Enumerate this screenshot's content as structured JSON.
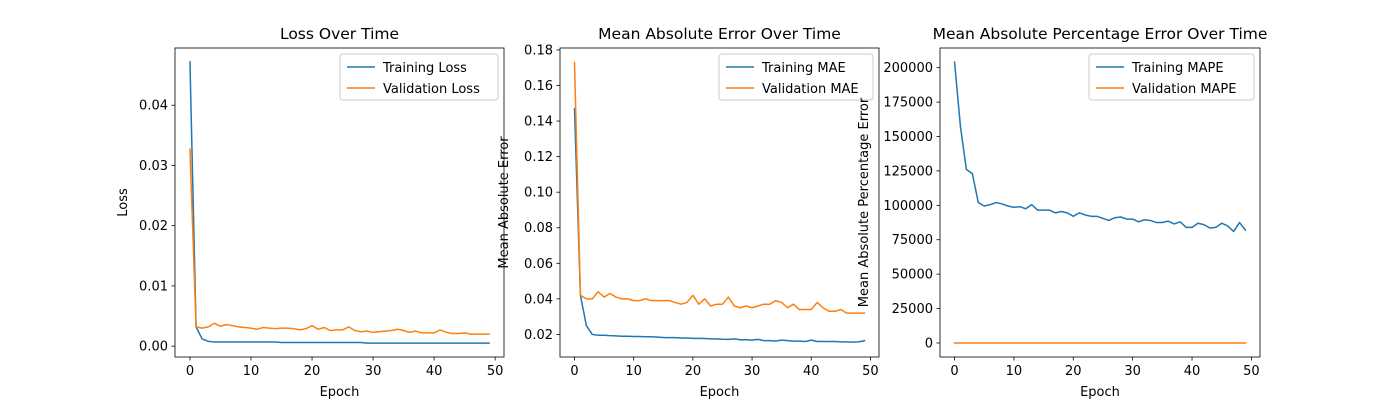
{
  "chart_data": [
    {
      "type": "line",
      "title": "Loss Over Time",
      "xlabel": "Epoch",
      "ylabel": "Loss",
      "xlim": [
        -2.45,
        51.45
      ],
      "ylim": [
        -0.0018,
        0.0495
      ],
      "xticks": [
        0,
        10,
        20,
        30,
        40,
        50
      ],
      "yticks": [
        0.0,
        0.01,
        0.02,
        0.03,
        0.04
      ],
      "ytick_labels": [
        "0.00",
        "0.01",
        "0.02",
        "0.03",
        "0.04"
      ],
      "legend": "upper right",
      "x": [
        0,
        1,
        2,
        3,
        4,
        5,
        6,
        7,
        8,
        9,
        10,
        11,
        12,
        13,
        14,
        15,
        16,
        17,
        18,
        19,
        20,
        21,
        22,
        23,
        24,
        25,
        26,
        27,
        28,
        29,
        30,
        31,
        32,
        33,
        34,
        35,
        36,
        37,
        38,
        39,
        40,
        41,
        42,
        43,
        44,
        45,
        46,
        47,
        48,
        49
      ],
      "series": [
        {
          "name": "Training Loss",
          "color": "#1f77b4",
          "values": [
            0.0472,
            0.0032,
            0.0012,
            0.0008,
            0.0007,
            0.0007,
            0.0007,
            0.0007,
            0.0007,
            0.0007,
            0.0007,
            0.0007,
            0.0007,
            0.0007,
            0.0007,
            0.0006,
            0.0006,
            0.0006,
            0.0006,
            0.0006,
            0.0006,
            0.0006,
            0.0006,
            0.0006,
            0.0006,
            0.0006,
            0.0006,
            0.0006,
            0.0006,
            0.0005,
            0.0005,
            0.0005,
            0.0005,
            0.0005,
            0.0005,
            0.0005,
            0.0005,
            0.0005,
            0.0005,
            0.0005,
            0.0005,
            0.0005,
            0.0005,
            0.0005,
            0.0005,
            0.0005,
            0.0005,
            0.0005,
            0.0005,
            0.0005
          ]
        },
        {
          "name": "Validation Loss",
          "color": "#ff7f0e",
          "values": [
            0.0327,
            0.0032,
            0.003,
            0.0032,
            0.0038,
            0.0033,
            0.0036,
            0.0034,
            0.0032,
            0.0031,
            0.003,
            0.0028,
            0.0031,
            0.003,
            0.0029,
            0.003,
            0.003,
            0.0029,
            0.0027,
            0.0029,
            0.0034,
            0.0028,
            0.0031,
            0.0026,
            0.0027,
            0.0027,
            0.0032,
            0.0026,
            0.0024,
            0.0025,
            0.0023,
            0.0024,
            0.0025,
            0.0026,
            0.0028,
            0.0026,
            0.0023,
            0.0025,
            0.0022,
            0.0022,
            0.0022,
            0.0027,
            0.0023,
            0.0021,
            0.0021,
            0.0022,
            0.002,
            0.002,
            0.002,
            0.002
          ]
        }
      ]
    },
    {
      "type": "line",
      "title": "Mean Absolute Error Over Time",
      "xlabel": "Epoch",
      "ylabel": "Mean Absolute Error",
      "xlim": [
        -2.45,
        51.45
      ],
      "ylim": [
        0.0073,
        0.1811
      ],
      "xticks": [
        0,
        10,
        20,
        30,
        40,
        50
      ],
      "yticks": [
        0.02,
        0.04,
        0.06,
        0.08,
        0.1,
        0.12,
        0.14,
        0.16,
        0.18
      ],
      "ytick_labels": [
        "0.02",
        "0.04",
        "0.06",
        "0.08",
        "0.10",
        "0.12",
        "0.14",
        "0.16",
        "0.18"
      ],
      "legend": "upper right",
      "x": [
        0,
        1,
        2,
        3,
        4,
        5,
        6,
        7,
        8,
        9,
        10,
        11,
        12,
        13,
        14,
        15,
        16,
        17,
        18,
        19,
        20,
        21,
        22,
        23,
        24,
        25,
        26,
        27,
        28,
        29,
        30,
        31,
        32,
        33,
        34,
        35,
        36,
        37,
        38,
        39,
        40,
        41,
        42,
        43,
        44,
        45,
        46,
        47,
        48,
        49
      ],
      "series": [
        {
          "name": "Training MAE",
          "color": "#1f77b4",
          "values": [
            0.147,
            0.042,
            0.025,
            0.02,
            0.0195,
            0.0195,
            0.0193,
            0.0192,
            0.019,
            0.019,
            0.0188,
            0.0188,
            0.0187,
            0.0187,
            0.0185,
            0.0183,
            0.0182,
            0.0182,
            0.018,
            0.018,
            0.0178,
            0.0178,
            0.0177,
            0.0175,
            0.0175,
            0.0173,
            0.0172,
            0.0175,
            0.017,
            0.017,
            0.0168,
            0.0172,
            0.0165,
            0.0165,
            0.0163,
            0.0168,
            0.0165,
            0.0162,
            0.0162,
            0.016,
            0.0168,
            0.016,
            0.016,
            0.016,
            0.016,
            0.0158,
            0.0158,
            0.0157,
            0.0158,
            0.0165
          ]
        },
        {
          "name": "Validation MAE",
          "color": "#ff7f0e",
          "values": [
            0.173,
            0.042,
            0.04,
            0.04,
            0.044,
            0.041,
            0.043,
            0.041,
            0.04,
            0.04,
            0.039,
            0.039,
            0.04,
            0.039,
            0.039,
            0.039,
            0.039,
            0.038,
            0.037,
            0.038,
            0.042,
            0.037,
            0.04,
            0.036,
            0.037,
            0.037,
            0.041,
            0.036,
            0.035,
            0.036,
            0.035,
            0.036,
            0.037,
            0.037,
            0.039,
            0.038,
            0.035,
            0.037,
            0.034,
            0.034,
            0.034,
            0.038,
            0.035,
            0.033,
            0.033,
            0.034,
            0.032,
            0.032,
            0.032,
            0.032
          ]
        }
      ]
    },
    {
      "type": "line",
      "title": "Mean Absolute Percentage Error Over Time",
      "xlabel": "Epoch",
      "ylabel": "Mean Absolute Percentage Error",
      "xlim": [
        -2.45,
        51.45
      ],
      "ylim": [
        -10200,
        214300
      ],
      "xticks": [
        0,
        10,
        20,
        30,
        40,
        50
      ],
      "yticks": [
        0,
        25000,
        50000,
        75000,
        100000,
        125000,
        150000,
        175000,
        200000
      ],
      "ytick_labels": [
        "0",
        "25000",
        "50000",
        "75000",
        "100000",
        "125000",
        "150000",
        "175000",
        "200000"
      ],
      "legend": "upper right",
      "x": [
        0,
        1,
        2,
        3,
        4,
        5,
        6,
        7,
        8,
        9,
        10,
        11,
        12,
        13,
        14,
        15,
        16,
        17,
        18,
        19,
        20,
        21,
        22,
        23,
        24,
        25,
        26,
        27,
        28,
        29,
        30,
        31,
        32,
        33,
        34,
        35,
        36,
        37,
        38,
        39,
        40,
        41,
        42,
        43,
        44,
        45,
        46,
        47,
        48,
        49
      ],
      "series": [
        {
          "name": "Training MAPE",
          "color": "#1f77b4",
          "values": [
            204000,
            157000,
            126000,
            123000,
            102000,
            99500,
            100500,
            102000,
            101000,
            99500,
            98500,
            99000,
            97500,
            100500,
            96500,
            96500,
            96500,
            94500,
            95500,
            94500,
            92000,
            94500,
            93000,
            92000,
            92000,
            90500,
            89000,
            91000,
            91500,
            90000,
            90000,
            88000,
            89500,
            89000,
            87500,
            87500,
            88500,
            86500,
            88000,
            84000,
            84000,
            87000,
            86000,
            83500,
            84000,
            87000,
            85000,
            81000,
            87500,
            82000
          ]
        },
        {
          "name": "Validation MAPE",
          "color": "#ff7f0e",
          "values": [
            0,
            0,
            0,
            0,
            0,
            0,
            0,
            0,
            0,
            0,
            0,
            0,
            0,
            0,
            0,
            0,
            0,
            0,
            0,
            0,
            0,
            0,
            0,
            0,
            0,
            0,
            0,
            0,
            0,
            0,
            0,
            0,
            0,
            0,
            0,
            0,
            0,
            0,
            0,
            0,
            0,
            0,
            0,
            0,
            0,
            0,
            0,
            0,
            0,
            0
          ]
        }
      ]
    }
  ]
}
